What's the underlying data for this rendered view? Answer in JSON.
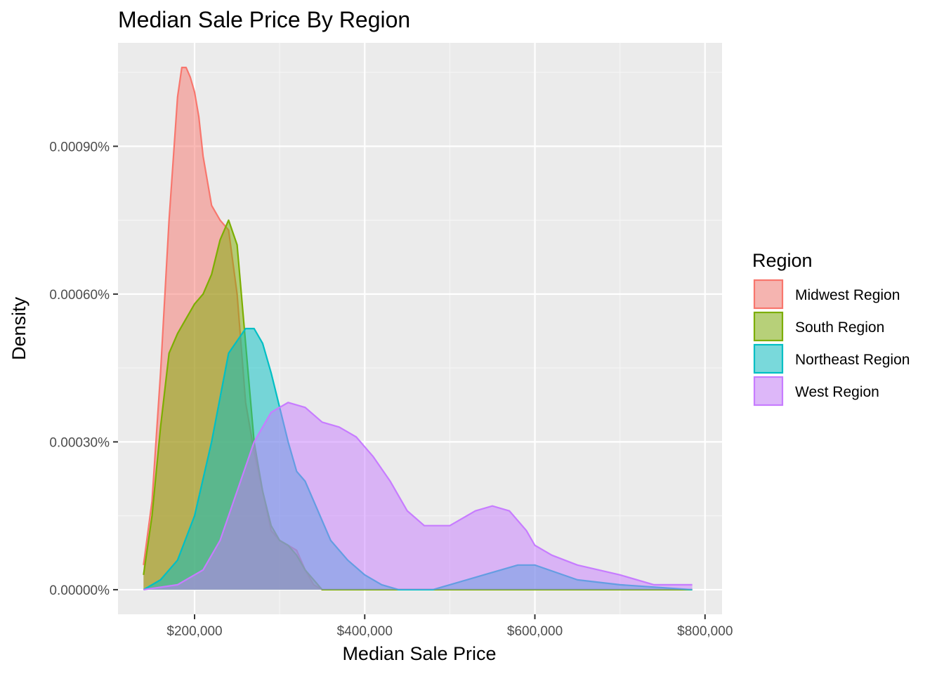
{
  "chart_data": {
    "type": "area",
    "title": "Median Sale Price By Region",
    "xlabel": "Median Sale Price",
    "ylabel": "Density",
    "xlim": [
      110000,
      820000
    ],
    "ylim": [
      -5e-07,
      1.11e-05
    ],
    "x_ticks": [
      {
        "value": 200000,
        "label": "$200,000"
      },
      {
        "value": 400000,
        "label": "$400,000"
      },
      {
        "value": 600000,
        "label": "$600,000"
      },
      {
        "value": 800000,
        "label": "$800,000"
      }
    ],
    "y_ticks": [
      {
        "value": 0,
        "label": "0.00000%"
      },
      {
        "value": 3e-06,
        "label": "0.00030%"
      },
      {
        "value": 6e-06,
        "label": "0.00060%"
      },
      {
        "value": 9e-06,
        "label": "0.00090%"
      }
    ],
    "grid": true,
    "legend": {
      "title": "Region",
      "position": "right"
    },
    "series": [
      {
        "name": "Midwest Region",
        "color": "#F8766D",
        "x": [
          140000,
          150000,
          160000,
          170000,
          180000,
          185000,
          190000,
          195000,
          200000,
          205000,
          210000,
          220000,
          230000,
          240000,
          250000,
          260000,
          270000,
          280000,
          290000,
          300000,
          310000,
          320000,
          330000,
          340000,
          350000,
          360000,
          380000,
          420000,
          500000,
          600000,
          700000,
          785000
        ],
        "y": [
          5e-07,
          1.8e-06,
          4.4e-06,
          7.5e-06,
          1e-05,
          1.06e-05,
          1.06e-05,
          1.04e-05,
          1.01e-05,
          9.6e-06,
          8.8e-06,
          7.8e-06,
          7.5e-06,
          7.3e-06,
          6e-06,
          3.8e-06,
          2.8e-06,
          2e-06,
          1.2e-06,
          1e-06,
          9e-07,
          8e-07,
          4e-07,
          1e-07,
          0.0,
          0.0,
          0.0,
          0.0,
          0.0,
          0.0,
          0.0,
          0.0
        ]
      },
      {
        "name": "South Region",
        "color": "#7CAE00",
        "x": [
          140000,
          150000,
          160000,
          170000,
          180000,
          190000,
          200000,
          210000,
          220000,
          230000,
          240000,
          250000,
          260000,
          270000,
          280000,
          290000,
          300000,
          310000,
          320000,
          330000,
          340000,
          350000,
          360000,
          400000,
          500000,
          600000,
          700000,
          785000
        ],
        "y": [
          3e-07,
          1.5e-06,
          3.3e-06,
          4.8e-06,
          5.2e-06,
          5.5e-06,
          5.8e-06,
          6e-06,
          6.4e-06,
          7.1e-06,
          7.5e-06,
          7e-06,
          5e-06,
          3e-06,
          2e-06,
          1.3e-06,
          1e-06,
          9e-07,
          7e-07,
          4e-07,
          2e-07,
          0.0,
          0.0,
          0.0,
          0.0,
          0.0,
          0.0,
          0.0
        ]
      },
      {
        "name": "Northeast Region",
        "color": "#00BFC4",
        "x": [
          140000,
          160000,
          180000,
          200000,
          220000,
          240000,
          260000,
          270000,
          280000,
          290000,
          300000,
          310000,
          320000,
          330000,
          340000,
          360000,
          380000,
          400000,
          420000,
          440000,
          460000,
          480000,
          500000,
          520000,
          540000,
          560000,
          580000,
          600000,
          650000,
          700000,
          785000
        ],
        "y": [
          0.0,
          2e-07,
          6e-07,
          1.5e-06,
          3e-06,
          4.8e-06,
          5.3e-06,
          5.3e-06,
          5e-06,
          4.4e-06,
          3.7e-06,
          3e-06,
          2.4e-06,
          2.2e-06,
          1.8e-06,
          1e-06,
          6e-07,
          3e-07,
          1e-07,
          0.0,
          0.0,
          0.0,
          1e-07,
          2e-07,
          3e-07,
          4e-07,
          5e-07,
          5e-07,
          2e-07,
          1e-07,
          0.0
        ]
      },
      {
        "name": "West Region",
        "color": "#C77CFF",
        "x": [
          140000,
          180000,
          210000,
          230000,
          250000,
          270000,
          290000,
          310000,
          330000,
          350000,
          370000,
          380000,
          390000,
          400000,
          410000,
          430000,
          450000,
          470000,
          500000,
          530000,
          550000,
          570000,
          590000,
          600000,
          620000,
          650000,
          700000,
          740000,
          785000
        ],
        "y": [
          0.0,
          1e-07,
          4e-07,
          1e-06,
          2e-06,
          3e-06,
          3.6e-06,
          3.8e-06,
          3.7e-06,
          3.4e-06,
          3.3e-06,
          3.2e-06,
          3.1e-06,
          2.9e-06,
          2.7e-06,
          2.2e-06,
          1.6e-06,
          1.3e-06,
          1.3e-06,
          1.6e-06,
          1.7e-06,
          1.6e-06,
          1.2e-06,
          9e-07,
          7e-07,
          5e-07,
          3e-07,
          1e-07,
          1e-07
        ]
      }
    ]
  }
}
